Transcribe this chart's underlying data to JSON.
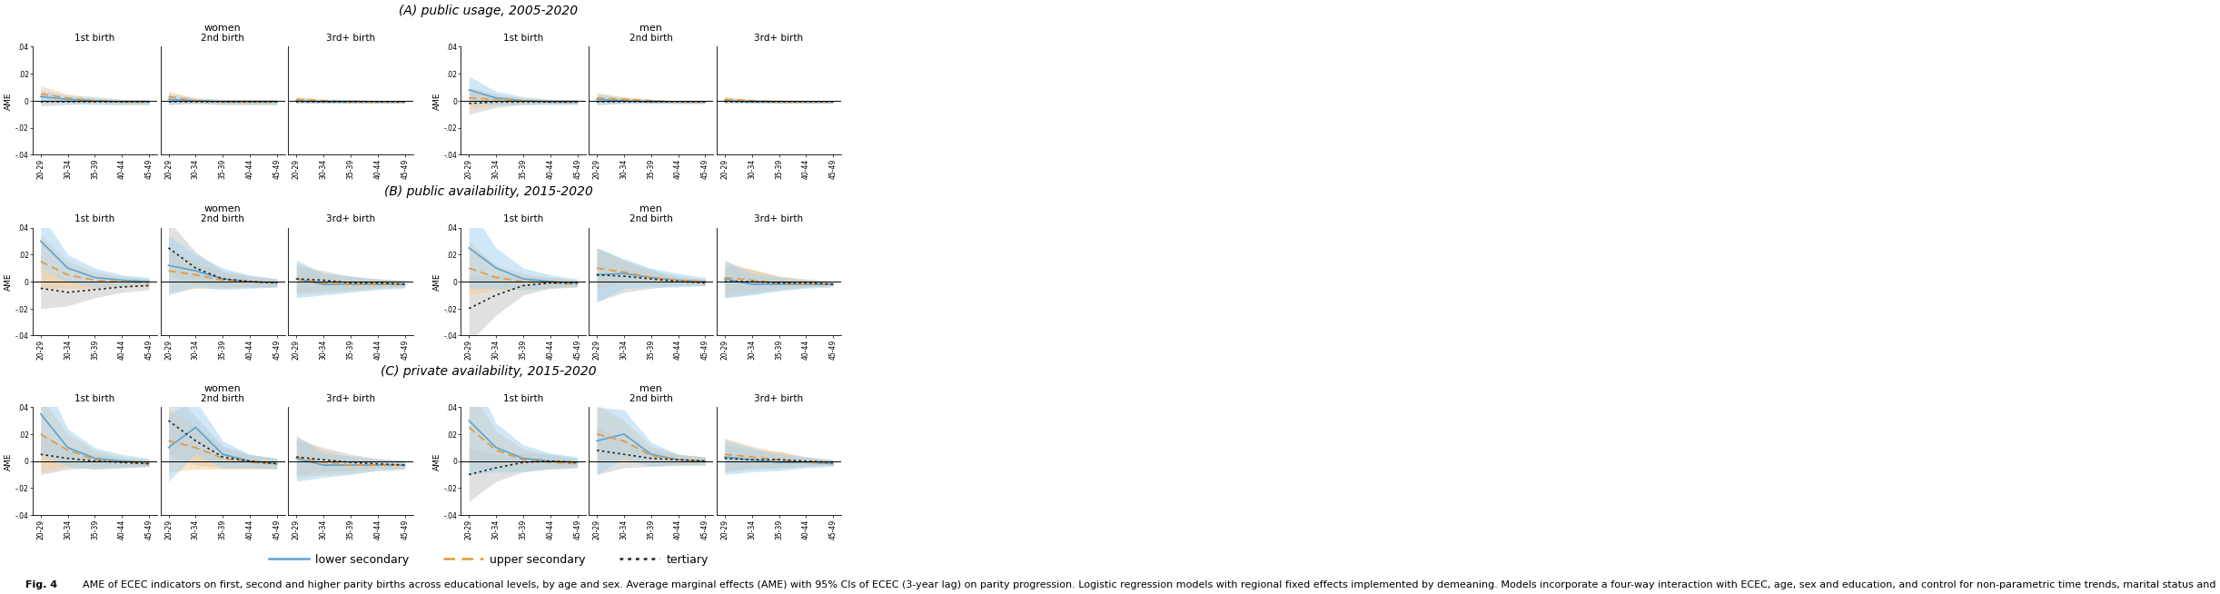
{
  "age_labels": [
    "20-29",
    "30-34",
    "35-39",
    "40-44",
    "45-49"
  ],
  "row_titles": [
    "(A) public usage, 2005-2020",
    "(B) public availability, 2015-2020",
    "(C) private availability, 2015-2020"
  ],
  "col_labels": [
    "1st birth",
    "2nd birth",
    "3rd+ birth",
    "1st birth",
    "2nd birth",
    "3rd+ birth"
  ],
  "ylim": [
    -0.04,
    0.04
  ],
  "yticks": [
    -0.04,
    -0.02,
    0.0,
    0.02,
    0.04
  ],
  "yticklabels": [
    "-.04",
    "-.02",
    "0",
    ".02",
    ".04"
  ],
  "colors": {
    "lower_sec": "#5BA4CF",
    "upper_sec": "#E8963A",
    "tertiary": "#222222",
    "lower_sec_fill": "#A8D4F0",
    "upper_sec_fill": "#F5CC99",
    "tertiary_fill": "#BBBBBB"
  },
  "panels": {
    "A_women_1st": {
      "lower_sec": [
        0.003,
        0.001,
        0.0,
        -0.001,
        -0.001
      ],
      "lower_sec_lo": [
        -0.002,
        -0.002,
        -0.003,
        -0.003,
        -0.003
      ],
      "lower_sec_hi": [
        0.008,
        0.004,
        0.003,
        0.001,
        0.001
      ],
      "upper_sec": [
        0.005,
        0.002,
        0.0,
        -0.001,
        -0.001
      ],
      "upper_sec_lo": [
        -0.001,
        -0.001,
        -0.002,
        -0.003,
        -0.003
      ],
      "upper_sec_hi": [
        0.011,
        0.005,
        0.002,
        0.001,
        0.001
      ],
      "tertiary": [
        -0.001,
        -0.001,
        -0.001,
        -0.001,
        -0.001
      ],
      "tertiary_lo": [
        -0.004,
        -0.003,
        -0.002,
        -0.002,
        -0.002
      ],
      "tertiary_hi": [
        0.002,
        0.001,
        0.001,
        0.0,
        0.0
      ]
    },
    "A_women_2nd": {
      "lower_sec": [
        0.001,
        0.0,
        -0.001,
        -0.001,
        -0.001
      ],
      "lower_sec_lo": [
        -0.003,
        -0.002,
        -0.003,
        -0.003,
        -0.003
      ],
      "lower_sec_hi": [
        0.005,
        0.002,
        0.001,
        0.001,
        0.001
      ],
      "upper_sec": [
        0.003,
        0.0,
        -0.001,
        -0.001,
        -0.001
      ],
      "upper_sec_lo": [
        -0.001,
        -0.002,
        -0.003,
        -0.003,
        -0.003
      ],
      "upper_sec_hi": [
        0.007,
        0.002,
        0.001,
        0.001,
        0.001
      ],
      "tertiary": [
        -0.001,
        -0.001,
        -0.001,
        -0.001,
        -0.001
      ],
      "tertiary_lo": [
        -0.003,
        -0.002,
        -0.002,
        -0.002,
        -0.002
      ],
      "tertiary_hi": [
        0.001,
        0.001,
        0.0,
        0.0,
        0.0
      ]
    },
    "A_women_3rd": {
      "lower_sec": [
        0.0,
        -0.001,
        -0.001,
        -0.001,
        -0.001
      ],
      "lower_sec_lo": [
        -0.002,
        -0.002,
        -0.002,
        -0.002,
        -0.002
      ],
      "lower_sec_hi": [
        0.002,
        0.001,
        0.001,
        0.0,
        0.0
      ],
      "upper_sec": [
        0.001,
        0.0,
        -0.001,
        -0.001,
        -0.001
      ],
      "upper_sec_lo": [
        -0.001,
        -0.001,
        -0.002,
        -0.002,
        -0.002
      ],
      "upper_sec_hi": [
        0.003,
        0.001,
        0.001,
        0.0,
        0.0
      ],
      "tertiary": [
        -0.001,
        -0.001,
        -0.001,
        -0.001,
        -0.001
      ],
      "tertiary_lo": [
        -0.002,
        -0.002,
        -0.002,
        -0.002,
        -0.002
      ],
      "tertiary_hi": [
        0.0,
        0.0,
        0.0,
        0.0,
        0.0
      ]
    },
    "A_men_1st": {
      "lower_sec": [
        0.008,
        0.002,
        0.0,
        -0.001,
        -0.001
      ],
      "lower_sec_lo": [
        -0.002,
        -0.003,
        -0.003,
        -0.003,
        -0.003
      ],
      "lower_sec_hi": [
        0.018,
        0.007,
        0.003,
        0.001,
        0.001
      ],
      "upper_sec": [
        0.002,
        0.001,
        0.0,
        -0.001,
        -0.001
      ],
      "upper_sec_lo": [
        -0.006,
        -0.003,
        -0.002,
        -0.002,
        -0.002
      ],
      "upper_sec_hi": [
        0.01,
        0.005,
        0.002,
        0.001,
        0.0
      ],
      "tertiary": [
        -0.002,
        -0.001,
        -0.001,
        -0.001,
        -0.001
      ],
      "tertiary_lo": [
        -0.01,
        -0.005,
        -0.003,
        -0.002,
        -0.002
      ],
      "tertiary_hi": [
        0.006,
        0.003,
        0.001,
        0.001,
        0.001
      ]
    },
    "A_men_2nd": {
      "lower_sec": [
        0.001,
        0.0,
        -0.001,
        -0.001,
        -0.001
      ],
      "lower_sec_lo": [
        -0.003,
        -0.002,
        -0.002,
        -0.002,
        -0.002
      ],
      "lower_sec_hi": [
        0.005,
        0.002,
        0.001,
        0.0,
        0.0
      ],
      "upper_sec": [
        0.002,
        0.001,
        0.0,
        -0.001,
        -0.001
      ],
      "upper_sec_lo": [
        -0.002,
        -0.001,
        -0.001,
        -0.002,
        -0.002
      ],
      "upper_sec_hi": [
        0.006,
        0.003,
        0.001,
        0.0,
        0.0
      ],
      "tertiary": [
        -0.001,
        -0.001,
        -0.001,
        -0.001,
        -0.001
      ],
      "tertiary_lo": [
        -0.003,
        -0.002,
        -0.002,
        -0.002,
        -0.002
      ],
      "tertiary_hi": [
        0.001,
        0.0,
        0.0,
        0.0,
        0.0
      ]
    },
    "A_men_3rd": {
      "lower_sec": [
        0.0,
        -0.001,
        -0.001,
        -0.001,
        -0.001
      ],
      "lower_sec_lo": [
        -0.002,
        -0.002,
        -0.002,
        -0.002,
        -0.002
      ],
      "lower_sec_hi": [
        0.002,
        0.001,
        0.0,
        0.0,
        0.0
      ],
      "upper_sec": [
        0.001,
        0.0,
        -0.001,
        -0.001,
        -0.001
      ],
      "upper_sec_lo": [
        -0.001,
        -0.001,
        -0.002,
        -0.002,
        -0.002
      ],
      "upper_sec_hi": [
        0.003,
        0.001,
        0.001,
        0.0,
        0.0
      ],
      "tertiary": [
        -0.001,
        -0.001,
        -0.001,
        -0.001,
        -0.001
      ],
      "tertiary_lo": [
        -0.002,
        -0.002,
        -0.002,
        -0.002,
        -0.002
      ],
      "tertiary_hi": [
        0.0,
        0.0,
        0.0,
        0.0,
        0.0
      ]
    },
    "B_women_1st": {
      "lower_sec": [
        0.03,
        0.01,
        0.003,
        0.001,
        0.0
      ],
      "lower_sec_lo": [
        0.01,
        0.0,
        -0.004,
        -0.003,
        -0.003
      ],
      "lower_sec_hi": [
        0.05,
        0.02,
        0.01,
        0.005,
        0.003
      ],
      "upper_sec": [
        0.015,
        0.005,
        0.001,
        0.0,
        -0.001
      ],
      "upper_sec_lo": [
        -0.005,
        -0.005,
        -0.005,
        -0.004,
        -0.004
      ],
      "upper_sec_hi": [
        0.035,
        0.015,
        0.007,
        0.004,
        0.002
      ],
      "tertiary": [
        -0.005,
        -0.008,
        -0.006,
        -0.004,
        -0.003
      ],
      "tertiary_lo": [
        -0.02,
        -0.018,
        -0.012,
        -0.008,
        -0.006
      ],
      "tertiary_hi": [
        0.01,
        0.002,
        0.0,
        -0.001,
        -0.001
      ]
    },
    "B_women_2nd": {
      "lower_sec": [
        0.012,
        0.008,
        0.002,
        0.0,
        -0.001
      ],
      "lower_sec_lo": [
        -0.01,
        -0.004,
        -0.006,
        -0.005,
        -0.004
      ],
      "lower_sec_hi": [
        0.034,
        0.02,
        0.01,
        0.005,
        0.002
      ],
      "upper_sec": [
        0.008,
        0.005,
        0.001,
        0.0,
        -0.001
      ],
      "upper_sec_lo": [
        -0.008,
        -0.005,
        -0.005,
        -0.004,
        -0.004
      ],
      "upper_sec_hi": [
        0.024,
        0.015,
        0.007,
        0.004,
        0.002
      ],
      "tertiary": [
        0.025,
        0.01,
        0.002,
        0.0,
        -0.001
      ],
      "tertiary_lo": [
        0.005,
        -0.002,
        -0.004,
        -0.004,
        -0.004
      ],
      "tertiary_hi": [
        0.045,
        0.022,
        0.008,
        0.004,
        0.002
      ]
    },
    "B_women_3rd": {
      "lower_sec": [
        0.002,
        -0.002,
        -0.002,
        -0.002,
        -0.002
      ],
      "lower_sec_lo": [
        -0.012,
        -0.01,
        -0.008,
        -0.006,
        -0.005
      ],
      "lower_sec_hi": [
        0.016,
        0.006,
        0.004,
        0.002,
        0.001
      ],
      "upper_sec": [
        0.002,
        -0.001,
        -0.002,
        -0.002,
        -0.002
      ],
      "upper_sec_lo": [
        -0.01,
        -0.008,
        -0.007,
        -0.005,
        -0.004
      ],
      "upper_sec_hi": [
        0.014,
        0.006,
        0.003,
        0.002,
        0.001
      ],
      "tertiary": [
        0.002,
        0.001,
        -0.001,
        -0.001,
        -0.002
      ],
      "tertiary_lo": [
        -0.008,
        -0.006,
        -0.006,
        -0.004,
        -0.004
      ],
      "tertiary_hi": [
        0.012,
        0.008,
        0.004,
        0.002,
        0.0
      ]
    },
    "B_men_1st": {
      "lower_sec": [
        0.025,
        0.01,
        0.002,
        0.0,
        -0.001
      ],
      "lower_sec_lo": [
        -0.005,
        -0.005,
        -0.006,
        -0.005,
        -0.004
      ],
      "lower_sec_hi": [
        0.055,
        0.025,
        0.01,
        0.005,
        0.002
      ],
      "upper_sec": [
        0.01,
        0.003,
        0.0,
        -0.001,
        -0.002
      ],
      "upper_sec_lo": [
        -0.01,
        -0.006,
        -0.006,
        -0.005,
        -0.004
      ],
      "upper_sec_hi": [
        0.03,
        0.012,
        0.006,
        0.003,
        0.001
      ],
      "tertiary": [
        -0.02,
        -0.01,
        -0.003,
        -0.001,
        -0.001
      ],
      "tertiary_lo": [
        -0.045,
        -0.025,
        -0.01,
        -0.005,
        -0.003
      ],
      "tertiary_hi": [
        0.005,
        0.005,
        0.004,
        0.003,
        0.001
      ]
    },
    "B_men_2nd": {
      "lower_sec": [
        0.005,
        0.006,
        0.003,
        0.001,
        0.0
      ],
      "lower_sec_lo": [
        -0.015,
        -0.005,
        -0.004,
        -0.004,
        -0.003
      ],
      "lower_sec_hi": [
        0.025,
        0.017,
        0.01,
        0.006,
        0.003
      ],
      "upper_sec": [
        0.01,
        0.007,
        0.003,
        0.001,
        0.0
      ],
      "upper_sec_lo": [
        -0.005,
        -0.001,
        -0.002,
        -0.002,
        -0.002
      ],
      "upper_sec_hi": [
        0.025,
        0.015,
        0.008,
        0.004,
        0.002
      ],
      "tertiary": [
        0.005,
        0.004,
        0.002,
        0.0,
        -0.001
      ],
      "tertiary_lo": [
        -0.015,
        -0.008,
        -0.005,
        -0.003,
        -0.003
      ],
      "tertiary_hi": [
        0.025,
        0.016,
        0.009,
        0.003,
        0.001
      ]
    },
    "B_men_3rd": {
      "lower_sec": [
        0.002,
        -0.002,
        -0.002,
        -0.002,
        -0.002
      ],
      "lower_sec_lo": [
        -0.012,
        -0.01,
        -0.007,
        -0.005,
        -0.004
      ],
      "lower_sec_hi": [
        0.016,
        0.006,
        0.003,
        0.001,
        0.0
      ],
      "upper_sec": [
        0.003,
        0.001,
        -0.001,
        -0.002,
        -0.002
      ],
      "upper_sec_lo": [
        -0.009,
        -0.007,
        -0.006,
        -0.004,
        -0.003
      ],
      "upper_sec_hi": [
        0.015,
        0.009,
        0.004,
        0.001,
        0.0
      ],
      "tertiary": [
        0.0,
        0.0,
        -0.001,
        -0.001,
        -0.002
      ],
      "tertiary_lo": [
        -0.012,
        -0.009,
        -0.006,
        -0.004,
        -0.003
      ],
      "tertiary_hi": [
        0.012,
        0.009,
        0.004,
        0.002,
        0.0
      ]
    },
    "C_women_1st": {
      "lower_sec": [
        0.035,
        0.01,
        0.002,
        0.0,
        -0.001
      ],
      "lower_sec_lo": [
        0.005,
        -0.004,
        -0.006,
        -0.005,
        -0.004
      ],
      "lower_sec_hi": [
        0.065,
        0.024,
        0.01,
        0.005,
        0.002
      ],
      "upper_sec": [
        0.02,
        0.008,
        0.001,
        -0.001,
        -0.002
      ],
      "upper_sec_lo": [
        -0.008,
        -0.004,
        -0.006,
        -0.005,
        -0.004
      ],
      "upper_sec_hi": [
        0.048,
        0.02,
        0.008,
        0.003,
        0.001
      ],
      "tertiary": [
        0.005,
        0.002,
        0.0,
        -0.001,
        -0.002
      ],
      "tertiary_lo": [
        -0.01,
        -0.006,
        -0.005,
        -0.004,
        -0.004
      ],
      "tertiary_hi": [
        0.02,
        0.01,
        0.005,
        0.002,
        0.001
      ]
    },
    "C_women_2nd": {
      "lower_sec": [
        0.01,
        0.025,
        0.005,
        0.0,
        -0.002
      ],
      "lower_sec_lo": [
        -0.015,
        0.005,
        -0.005,
        -0.005,
        -0.006
      ],
      "lower_sec_hi": [
        0.035,
        0.045,
        0.015,
        0.005,
        0.002
      ],
      "upper_sec": [
        0.015,
        0.01,
        0.002,
        -0.001,
        -0.002
      ],
      "upper_sec_lo": [
        -0.008,
        -0.006,
        -0.006,
        -0.006,
        -0.006
      ],
      "upper_sec_hi": [
        0.038,
        0.026,
        0.01,
        0.004,
        0.002
      ],
      "tertiary": [
        0.03,
        0.015,
        0.003,
        0.0,
        -0.002
      ],
      "tertiary_lo": [
        0.005,
        -0.003,
        -0.005,
        -0.005,
        -0.005
      ],
      "tertiary_hi": [
        0.055,
        0.033,
        0.011,
        0.005,
        0.002
      ]
    },
    "C_women_3rd": {
      "lower_sec": [
        0.002,
        -0.003,
        -0.003,
        -0.003,
        -0.003
      ],
      "lower_sec_lo": [
        -0.015,
        -0.012,
        -0.01,
        -0.007,
        -0.006
      ],
      "lower_sec_hi": [
        0.019,
        0.006,
        0.004,
        0.001,
        0.001
      ],
      "upper_sec": [
        0.003,
        -0.001,
        -0.003,
        -0.003,
        -0.003
      ],
      "upper_sec_lo": [
        -0.012,
        -0.01,
        -0.009,
        -0.007,
        -0.006
      ],
      "upper_sec_hi": [
        0.018,
        0.008,
        0.003,
        0.001,
        0.0
      ],
      "tertiary": [
        0.003,
        0.001,
        -0.001,
        -0.002,
        -0.003
      ],
      "tertiary_lo": [
        -0.01,
        -0.008,
        -0.007,
        -0.005,
        -0.005
      ],
      "tertiary_hi": [
        0.016,
        0.01,
        0.005,
        0.002,
        0.0
      ]
    },
    "C_men_1st": {
      "lower_sec": [
        0.03,
        0.01,
        0.002,
        0.0,
        -0.001
      ],
      "lower_sec_lo": [
        -0.01,
        -0.008,
        -0.008,
        -0.006,
        -0.005
      ],
      "lower_sec_hi": [
        0.07,
        0.028,
        0.012,
        0.006,
        0.003
      ],
      "upper_sec": [
        0.025,
        0.008,
        0.001,
        -0.001,
        -0.002
      ],
      "upper_sec_lo": [
        -0.005,
        -0.006,
        -0.007,
        -0.006,
        -0.005
      ],
      "upper_sec_hi": [
        0.055,
        0.022,
        0.009,
        0.004,
        0.001
      ],
      "tertiary": [
        -0.01,
        -0.005,
        -0.001,
        0.0,
        -0.001
      ],
      "tertiary_lo": [
        -0.03,
        -0.015,
        -0.008,
        -0.005,
        -0.004
      ],
      "tertiary_hi": [
        0.01,
        0.005,
        0.006,
        0.005,
        0.002
      ]
    },
    "C_men_2nd": {
      "lower_sec": [
        0.015,
        0.02,
        0.005,
        0.001,
        0.0
      ],
      "lower_sec_lo": [
        -0.01,
        0.002,
        -0.004,
        -0.003,
        -0.003
      ],
      "lower_sec_hi": [
        0.04,
        0.038,
        0.014,
        0.005,
        0.003
      ],
      "upper_sec": [
        0.02,
        0.015,
        0.004,
        0.001,
        0.0
      ],
      "upper_sec_lo": [
        -0.002,
        0.0,
        -0.003,
        -0.003,
        -0.003
      ],
      "upper_sec_hi": [
        0.042,
        0.03,
        0.011,
        0.005,
        0.003
      ],
      "tertiary": [
        0.008,
        0.005,
        0.002,
        0.001,
        0.0
      ],
      "tertiary_lo": [
        -0.01,
        -0.005,
        -0.004,
        -0.003,
        -0.003
      ],
      "tertiary_hi": [
        0.026,
        0.015,
        0.008,
        0.005,
        0.003
      ]
    },
    "C_men_3rd": {
      "lower_sec": [
        0.003,
        0.001,
        -0.001,
        -0.001,
        -0.002
      ],
      "lower_sec_lo": [
        -0.01,
        -0.008,
        -0.007,
        -0.005,
        -0.004
      ],
      "lower_sec_hi": [
        0.016,
        0.01,
        0.005,
        0.003,
        0.001
      ],
      "upper_sec": [
        0.005,
        0.003,
        0.001,
        -0.001,
        -0.001
      ],
      "upper_sec_lo": [
        -0.007,
        -0.005,
        -0.005,
        -0.004,
        -0.003
      ],
      "upper_sec_hi": [
        0.017,
        0.011,
        0.007,
        0.003,
        0.001
      ],
      "tertiary": [
        0.002,
        0.001,
        0.001,
        0.0,
        -0.001
      ],
      "tertiary_lo": [
        -0.008,
        -0.006,
        -0.005,
        -0.003,
        -0.003
      ],
      "tertiary_hi": [
        0.012,
        0.008,
        0.007,
        0.003,
        0.001
      ]
    }
  },
  "caption_bold": "Fig. 4",
  "caption_normal": "  AME of ECEC indicators on first, second and higher parity births across educational levels, by age and sex. Average marginal effects (AME) with 95% CIs of ECEC (3-year lag) on parity progression. Logistic regression models with regional fixed effects implemented by demeaning. Models incorporate a four-way interaction with ECEC, age, sex and education, and control for non-parametric time trends, marital status and"
}
